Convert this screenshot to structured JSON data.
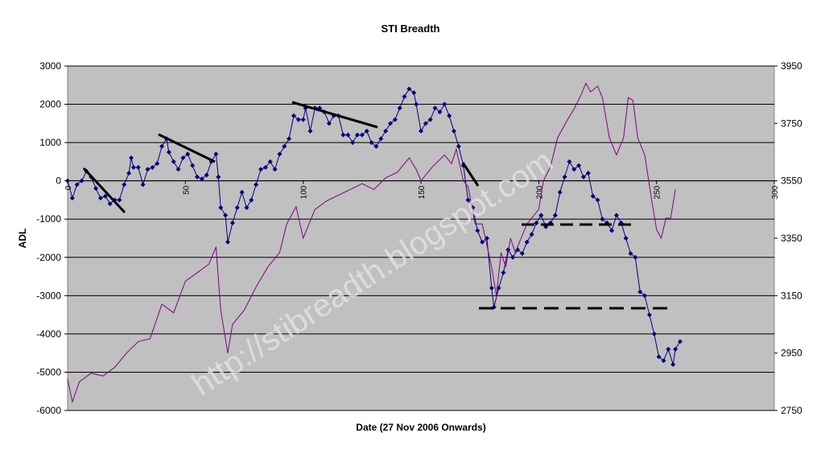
{
  "chart_data": {
    "type": "line",
    "title": "STI Breadth",
    "xlabel": "Date (27 Nov 2006 Onwards)",
    "ylabel": "ADL",
    "watermark": "http://stibreadth.blogspot.com",
    "xlim": [
      0,
      300
    ],
    "xticks": [
      0,
      50,
      100,
      150,
      200,
      250,
      300
    ],
    "ylim": [
      -6000,
      3000
    ],
    "yticks": [
      -6000,
      -5000,
      -4000,
      -3000,
      -2000,
      -1000,
      0,
      1000,
      2000,
      3000
    ],
    "y2lim": [
      2750,
      3950
    ],
    "y2ticks": [
      2750,
      2950,
      3150,
      3350,
      3550,
      3750,
      3950
    ],
    "grid": true,
    "series": [
      {
        "color": "#000080",
        "marker": "diamond",
        "x": [
          0,
          2,
          4,
          6,
          8,
          10,
          12,
          14,
          16,
          18,
          20,
          22,
          24,
          26,
          27,
          28,
          30,
          32,
          34,
          36,
          38,
          40,
          42,
          43,
          45,
          47,
          49,
          51,
          53,
          55,
          57,
          59,
          61,
          63,
          64,
          65,
          67,
          68,
          70,
          72,
          74,
          76,
          78,
          80,
          82,
          84,
          86,
          88,
          90,
          92,
          94,
          96,
          98,
          100,
          101,
          103,
          105,
          107,
          109,
          111,
          113,
          115,
          117,
          119,
          121,
          123,
          125,
          127,
          129,
          131,
          133,
          135,
          137,
          139,
          141,
          143,
          145,
          147,
          148,
          150,
          152,
          154,
          156,
          158,
          160,
          162,
          164,
          166,
          168,
          170,
          172,
          174,
          176,
          178,
          180,
          181,
          183,
          185,
          187,
          189,
          191,
          193,
          195,
          197,
          199,
          201,
          203,
          205,
          207,
          209,
          211,
          213,
          215,
          217,
          219,
          221,
          223,
          225,
          227,
          229,
          231,
          233,
          235,
          237,
          239,
          241,
          243,
          245,
          247,
          249,
          251,
          253,
          255,
          257,
          258,
          260
        ],
        "values": [
          0,
          -450,
          -100,
          0,
          250,
          100,
          -200,
          -450,
          -400,
          -600,
          -500,
          -500,
          -100,
          200,
          600,
          350,
          350,
          -100,
          300,
          350,
          450,
          900,
          1100,
          750,
          500,
          300,
          600,
          700,
          400,
          100,
          50,
          150,
          500,
          700,
          100,
          -700,
          -900,
          -1600,
          -1100,
          -700,
          -300,
          -700,
          -500,
          -100,
          300,
          350,
          500,
          300,
          700,
          900,
          1100,
          1700,
          1600,
          1600,
          1900,
          1300,
          1900,
          1900,
          1800,
          1500,
          1700,
          1700,
          1200,
          1200,
          1000,
          1200,
          1200,
          1300,
          1000,
          900,
          1100,
          1300,
          1500,
          1600,
          1900,
          2200,
          2400,
          2300,
          2000,
          1300,
          1500,
          1600,
          1900,
          1800,
          2000,
          1700,
          1300,
          900,
          400,
          -500,
          -700,
          -1300,
          -1600,
          -1500,
          -2800,
          -3300,
          -2800,
          -2400,
          -1800,
          -2000,
          -1800,
          -1900,
          -1600,
          -1400,
          -1100,
          -900,
          -1200,
          -1100,
          -900,
          -300,
          100,
          500,
          300,
          400,
          100,
          200,
          -400,
          -500,
          -1000,
          -1100,
          -1300,
          -900,
          -1100,
          -1500,
          -1900,
          -2000,
          -2900,
          -3000,
          -3500,
          -4000,
          -4600,
          -4700,
          -4400,
          -4800,
          -4400,
          -4200
        ]
      },
      {
        "color": "#800080",
        "axis": "y2",
        "x": [
          0,
          2,
          5,
          10,
          15,
          20,
          25,
          30,
          35,
          40,
          45,
          50,
          55,
          60,
          63,
          65,
          68,
          70,
          75,
          80,
          85,
          90,
          93,
          97,
          100,
          105,
          110,
          115,
          120,
          125,
          130,
          135,
          140,
          145,
          148,
          150,
          155,
          160,
          163,
          165,
          168,
          170,
          173,
          176,
          180,
          182,
          184,
          186,
          188,
          190,
          195,
          200,
          202,
          205,
          208,
          212,
          215,
          218,
          220,
          222,
          225,
          227,
          230,
          233,
          236,
          238,
          240,
          242,
          245,
          248,
          250,
          252,
          254,
          256,
          258
        ],
        "values": [
          2860,
          2780,
          2850,
          2880,
          2870,
          2900,
          2950,
          2990,
          3000,
          3120,
          3090,
          3200,
          3230,
          3260,
          3320,
          3100,
          2950,
          3050,
          3100,
          3180,
          3250,
          3300,
          3400,
          3460,
          3350,
          3450,
          3480,
          3500,
          3520,
          3540,
          3520,
          3560,
          3580,
          3630,
          3590,
          3550,
          3600,
          3640,
          3610,
          3660,
          3550,
          3530,
          3400,
          3400,
          3250,
          3150,
          3300,
          3250,
          3350,
          3300,
          3400,
          3450,
          3550,
          3600,
          3700,
          3760,
          3800,
          3850,
          3890,
          3860,
          3880,
          3840,
          3700,
          3640,
          3700,
          3840,
          3830,
          3700,
          3640,
          3480,
          3380,
          3350,
          3420,
          3420,
          3520
        ]
      }
    ]
  }
}
